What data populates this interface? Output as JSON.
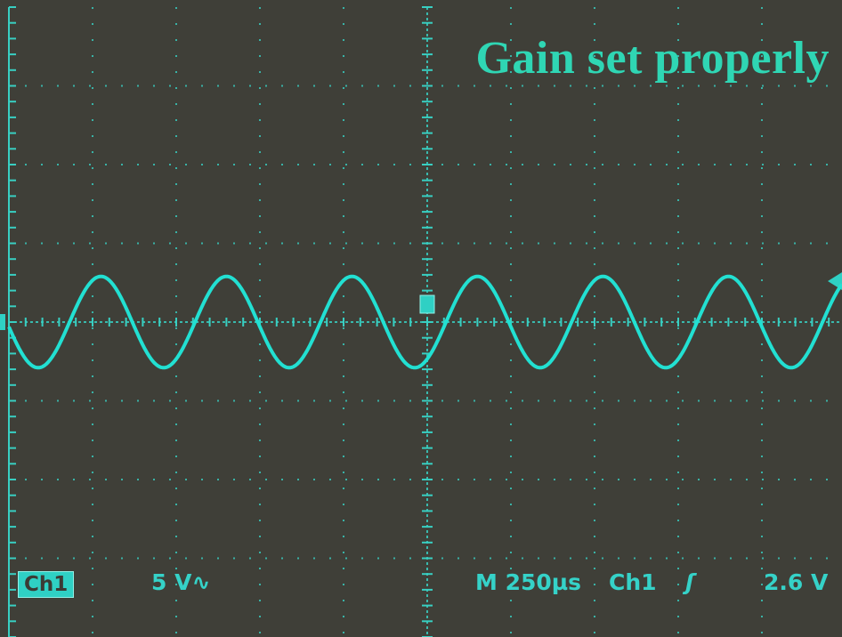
{
  "annotation": "Gain set properly",
  "readout": {
    "channel_badge": "Ch1",
    "volts_per_div": "5 V∿",
    "timebase": "M 250µs",
    "trigger_channel": "Ch1",
    "trigger_slope_symbol": "ʃ",
    "trigger_level": "2.6 V"
  },
  "colors": {
    "screen_background": "#3f3f38",
    "graticule": "#38cfc2",
    "trace": "#22e0d2",
    "annotation": "#2fd6b4"
  },
  "chart_data": {
    "type": "line",
    "title": "",
    "xlabel": "",
    "ylabel": "",
    "grid": true,
    "graticule_divisions": {
      "horizontal": 10,
      "vertical": 8
    },
    "volts_per_division": 5,
    "time_per_division_us": 250,
    "xlim_us": [
      -1250,
      1250
    ],
    "ylim_v": [
      -20,
      20
    ],
    "series": [
      {
        "waveform": "sine",
        "amplitude_v": 2.9,
        "period_us": 375,
        "first_positive_peak_us": 150,
        "offset_v": 0
      }
    ],
    "trigger_level_v": 2.6
  }
}
